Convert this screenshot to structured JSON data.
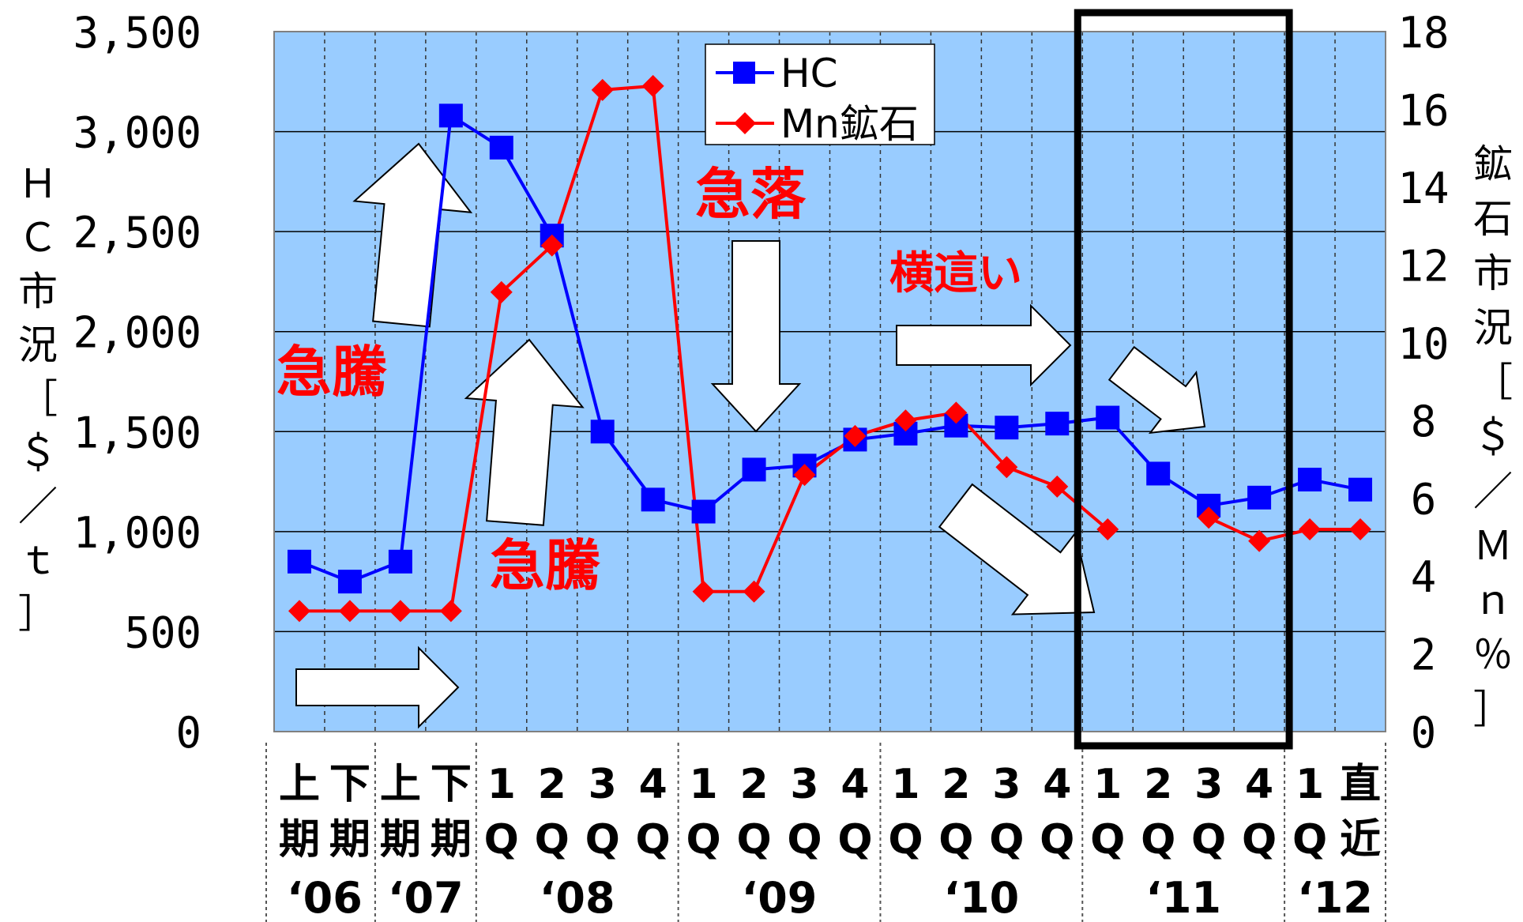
{
  "chart_data": {
    "type": "line",
    "categories": [
      "上期",
      "下期",
      "上期",
      "下期",
      "1Q",
      "2Q",
      "3Q",
      "4Q",
      "1Q",
      "2Q",
      "3Q",
      "4Q",
      "1Q",
      "2Q",
      "3Q",
      "4Q",
      "1Q",
      "2Q",
      "3Q",
      "4Q",
      "1Q",
      "直近"
    ],
    "category_labels": [
      [
        "上",
        "期"
      ],
      [
        "下",
        "期"
      ],
      [
        "上",
        "期"
      ],
      [
        "下",
        "期"
      ],
      [
        "1",
        "Q"
      ],
      [
        "2",
        "Q"
      ],
      [
        "3",
        "Q"
      ],
      [
        "4",
        "Q"
      ],
      [
        "1",
        "Q"
      ],
      [
        "2",
        "Q"
      ],
      [
        "3",
        "Q"
      ],
      [
        "4",
        "Q"
      ],
      [
        "1",
        "Q"
      ],
      [
        "2",
        "Q"
      ],
      [
        "3",
        "Q"
      ],
      [
        "4",
        "Q"
      ],
      [
        "1",
        "Q"
      ],
      [
        "2",
        "Q"
      ],
      [
        "3",
        "Q"
      ],
      [
        "4",
        "Q"
      ],
      [
        "1",
        "Q"
      ],
      [
        "直",
        "近"
      ]
    ],
    "year_groups": [
      {
        "label": "‘06",
        "start": 0,
        "end": 1
      },
      {
        "label": "‘07",
        "start": 2,
        "end": 3
      },
      {
        "label": "‘08",
        "start": 4,
        "end": 7
      },
      {
        "label": "‘09",
        "start": 8,
        "end": 11
      },
      {
        "label": "‘10",
        "start": 12,
        "end": 15
      },
      {
        "label": "‘11",
        "start": 16,
        "end": 19
      },
      {
        "label": "‘12",
        "start": 20,
        "end": 21
      }
    ],
    "series": [
      {
        "name": "HC",
        "axis": "left",
        "color": "#0000ff",
        "marker": "square",
        "values": [
          850,
          750,
          850,
          3080,
          2920,
          2480,
          1500,
          1160,
          1100,
          1310,
          1330,
          1460,
          1490,
          1530,
          1520,
          1540,
          1570,
          1290,
          1130,
          1170,
          1260,
          1210
        ]
      },
      {
        "name": "Mn鉱石",
        "axis": "right",
        "color": "#ff0000",
        "marker": "diamond",
        "values": [
          3.1,
          3.1,
          3.1,
          3.1,
          11.3,
          12.5,
          16.5,
          16.6,
          3.6,
          3.6,
          6.6,
          7.6,
          8.0,
          8.2,
          6.8,
          6.3,
          5.2,
          null,
          5.5,
          4.9,
          5.2,
          5.2
        ]
      }
    ],
    "y_left": {
      "label": [
        "Ｈ",
        "Ｃ",
        "市",
        "況",
        "［",
        "＄",
        "／",
        "ｔ",
        "］"
      ],
      "ylim": [
        0,
        3500
      ],
      "ticks": [
        "0",
        "500",
        "1,000",
        "1,500",
        "2,000",
        "2,500",
        "3,000",
        "3,500"
      ]
    },
    "y_right": {
      "label": [
        "鉱",
        "石",
        "市",
        "況",
        "［",
        "＄",
        "／",
        "Ｍ",
        "ｎ",
        "％",
        "］"
      ],
      "ylim": [
        0,
        18
      ],
      "ticks": [
        "0",
        "2",
        "4",
        "6",
        "8",
        "10",
        "12",
        "14",
        "16",
        "18"
      ]
    },
    "legend_position": "top-center",
    "grid": true,
    "highlight_box": {
      "from_index": 16,
      "to_index": 19
    },
    "annotations": [
      "急騰",
      "急騰",
      "急落",
      "横這い"
    ],
    "plot_background": "#99ccff"
  }
}
